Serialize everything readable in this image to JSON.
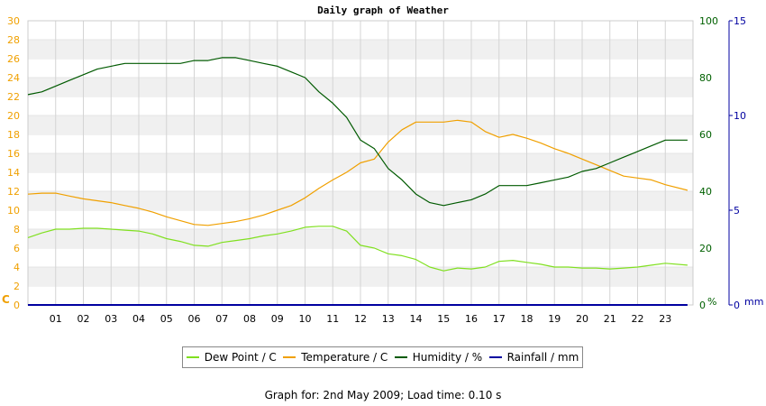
{
  "chart_data": {
    "type": "line",
    "title": "Daily graph of Weather",
    "x_ticks": [
      "01",
      "02",
      "03",
      "04",
      "05",
      "06",
      "07",
      "08",
      "09",
      "10",
      "11",
      "12",
      "13",
      "14",
      "15",
      "16",
      "17",
      "18",
      "19",
      "20",
      "21",
      "22",
      "23"
    ],
    "xlim": [
      0,
      24
    ],
    "axes": {
      "left": {
        "unit": "C",
        "ticks": [
          0,
          2,
          4,
          6,
          8,
          10,
          12,
          14,
          16,
          18,
          20,
          22,
          24,
          26,
          28,
          30
        ],
        "range": [
          0,
          30
        ],
        "color": "#f0a000"
      },
      "right_humidity": {
        "unit": "%",
        "ticks": [
          0,
          20,
          40,
          60,
          80,
          100
        ],
        "range": [
          0,
          100
        ],
        "color": "#006000"
      },
      "right_rain": {
        "unit": "mm",
        "ticks": [
          0,
          5,
          10,
          15
        ],
        "range": [
          0,
          15
        ],
        "color": "#0000a0"
      }
    },
    "grid": true,
    "legend_position": "bottom",
    "series": [
      {
        "name": "Dew Point / C",
        "color": "#80e020",
        "axis": "left",
        "x": [
          0,
          0.5,
          1,
          1.5,
          2,
          2.5,
          3,
          3.5,
          4,
          4.5,
          5,
          5.5,
          6,
          6.5,
          7,
          7.5,
          8,
          8.5,
          9,
          9.5,
          10,
          10.5,
          11,
          11.5,
          12,
          12.5,
          13,
          13.5,
          14,
          14.5,
          15,
          15.5,
          16,
          16.5,
          17,
          17.5,
          18,
          18.5,
          19,
          19.5,
          20,
          20.5,
          21,
          21.5,
          22,
          22.5,
          23,
          23.8
        ],
        "values": [
          7.1,
          7.6,
          8.0,
          8.0,
          8.1,
          8.1,
          8.0,
          7.9,
          7.8,
          7.5,
          7.0,
          6.7,
          6.3,
          6.2,
          6.6,
          6.8,
          7.0,
          7.3,
          7.5,
          7.8,
          8.2,
          8.3,
          8.3,
          7.8,
          6.3,
          6.0,
          5.4,
          5.2,
          4.8,
          4.0,
          3.6,
          3.9,
          3.8,
          4.0,
          4.6,
          4.7,
          4.5,
          4.3,
          4.0,
          4.0,
          3.9,
          3.9,
          3.8,
          3.9,
          4.0,
          4.2,
          4.4,
          4.2
        ]
      },
      {
        "name": "Temperature / C",
        "color": "#f0a000",
        "axis": "left",
        "x": [
          0,
          0.5,
          1,
          1.5,
          2,
          2.5,
          3,
          3.5,
          4,
          4.5,
          5,
          5.5,
          6,
          6.5,
          7,
          7.5,
          8,
          8.5,
          9,
          9.5,
          10,
          10.5,
          11,
          11.5,
          12,
          12.5,
          13,
          13.5,
          14,
          14.5,
          15,
          15.5,
          16,
          16.5,
          17,
          17.5,
          18,
          18.5,
          19,
          19.5,
          20,
          20.5,
          21,
          21.5,
          22,
          22.5,
          23,
          23.8
        ],
        "values": [
          11.7,
          11.8,
          11.8,
          11.5,
          11.2,
          11.0,
          10.8,
          10.5,
          10.2,
          9.8,
          9.3,
          8.9,
          8.5,
          8.4,
          8.6,
          8.8,
          9.1,
          9.5,
          10.0,
          10.5,
          11.3,
          12.3,
          13.2,
          14.0,
          15.0,
          15.4,
          17.2,
          18.5,
          19.3,
          19.3,
          19.3,
          19.5,
          19.3,
          18.3,
          17.7,
          18.0,
          17.6,
          17.1,
          16.5,
          16.0,
          15.4,
          14.8,
          14.2,
          13.6,
          13.4,
          13.2,
          12.7,
          12.1
        ]
      },
      {
        "name": "Humidity / %",
        "color": "#005a00",
        "axis": "right_humidity",
        "x": [
          0,
          0.5,
          1,
          1.5,
          2,
          2.5,
          3,
          3.5,
          4,
          4.5,
          5,
          5.5,
          6,
          6.5,
          7,
          7.5,
          8,
          8.5,
          9,
          9.5,
          10,
          10.5,
          11,
          11.5,
          12,
          12.5,
          13,
          13.5,
          14,
          14.5,
          15,
          15.5,
          16,
          16.5,
          17,
          17.5,
          18,
          18.5,
          19,
          19.5,
          20,
          20.5,
          21,
          21.5,
          22,
          22.5,
          23,
          23.8
        ],
        "values": [
          74,
          75,
          77,
          79,
          81,
          83,
          84,
          85,
          85,
          85,
          85,
          85,
          86,
          86,
          87,
          87,
          86,
          85,
          84,
          82,
          80,
          75,
          71,
          66,
          58,
          55,
          48,
          44,
          39,
          36,
          35,
          36,
          37,
          39,
          42,
          42,
          42,
          43,
          44,
          45,
          47,
          48,
          50,
          52,
          54,
          56,
          58,
          58
        ]
      },
      {
        "name": "Rainfall / mm",
        "color": "#0000a0",
        "axis": "right_rain",
        "x": [
          0,
          23.8
        ],
        "values": [
          0,
          0
        ]
      }
    ]
  },
  "footer": {
    "text": "Graph for: 2nd May 2009; Load time: 0.10 s"
  }
}
